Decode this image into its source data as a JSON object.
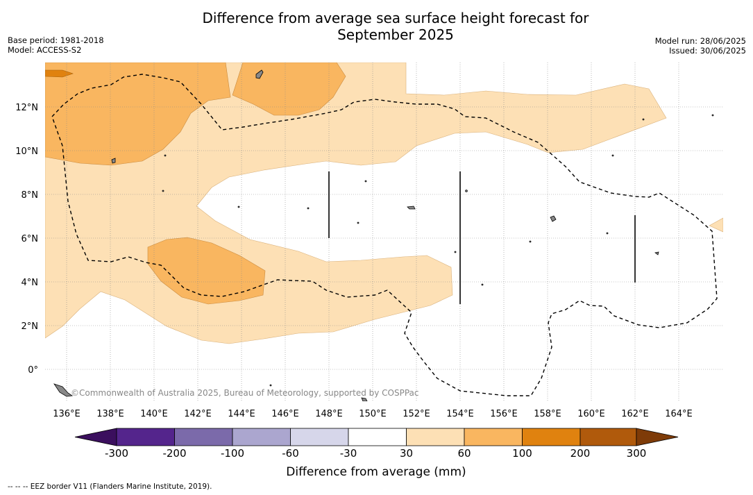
{
  "title_line1": "Difference from average sea surface height forecast for",
  "title_line2": "September 2025",
  "base_period": "Base period: 1981-2018",
  "model": "Model: ACCESS-S2",
  "model_run": "Model run: 28/06/2025",
  "issued": "Issued: 30/06/2025",
  "copyright": "©Commonwealth of Australia 2025, Bureau of Meteorology, supported by COSPPac",
  "colorbar_label": "Difference from average (mm)",
  "footer": "--  --  -- EEZ border V11 (Flanders Marine Institute, 2019).",
  "map": {
    "lon_range": [
      135,
      166
    ],
    "lat_range": [
      -1.5,
      14
    ],
    "lon_ticks": [
      "136°E",
      "138°E",
      "140°E",
      "142°E",
      "144°E",
      "146°E",
      "148°E",
      "150°E",
      "152°E",
      "154°E",
      "156°E",
      "158°E",
      "160°E",
      "162°E",
      "164°E"
    ],
    "lat_ticks": [
      "0°",
      "2°N",
      "4°N",
      "6°N",
      "8°N",
      "10°N",
      "12°N"
    ],
    "grid": true
  },
  "colorbar": {
    "ticks": [
      "-300",
      "-200",
      "-100",
      "-60",
      "-30",
      "30",
      "60",
      "100",
      "200",
      "300"
    ],
    "colors": [
      "#3b0f5e",
      "#54258c",
      "#7b6aaa",
      "#aba6cf",
      "#d6d6ea",
      "#ffffff",
      "#fde0b5",
      "#f9b660",
      "#e0820f",
      "#b05a0c",
      "#7e3b08"
    ]
  },
  "legend_colors": {
    "c30_60": "#fde0b5",
    "c60_100": "#f9b660",
    "c100_200": "#e0820f"
  }
}
